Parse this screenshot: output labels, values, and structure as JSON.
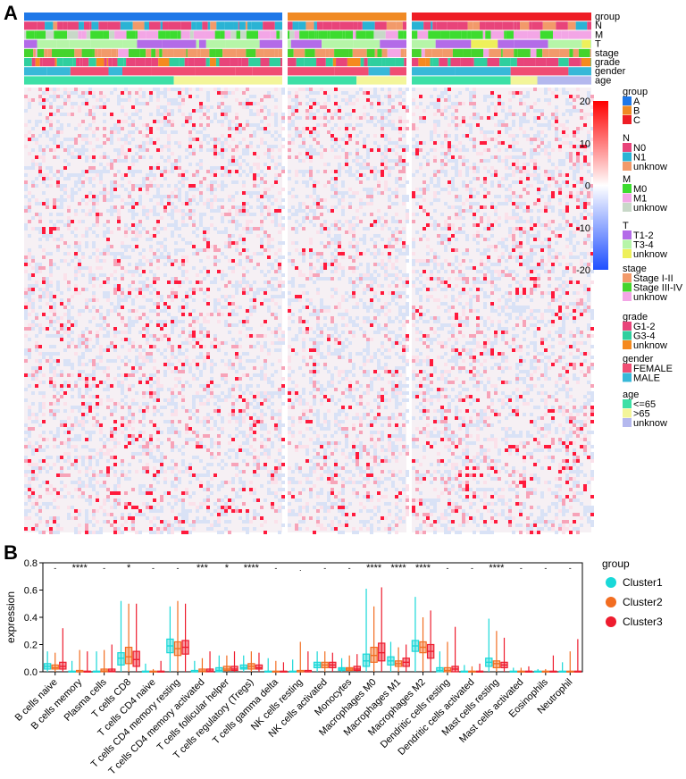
{
  "panel_a": {
    "label": "A",
    "annotation_rows": [
      "group",
      "N",
      "M",
      "T",
      "stage",
      "grade",
      "gender",
      "age"
    ],
    "legend_groups": [
      {
        "title": "group",
        "items": [
          {
            "label": "A",
            "color": "#1f78e8"
          },
          {
            "label": "B",
            "color": "#f08a24"
          },
          {
            "label": "C",
            "color": "#ee1d25"
          }
        ]
      },
      {
        "title": "N",
        "items": [
          {
            "label": "N0",
            "color": "#e8447a"
          },
          {
            "label": "N1",
            "color": "#2ab3d4"
          },
          {
            "label": "unknow",
            "color": "#f29a6a"
          }
        ]
      },
      {
        "title": "M",
        "items": [
          {
            "label": "M0",
            "color": "#3ddc2f"
          },
          {
            "label": "M1",
            "color": "#f3a6e6"
          },
          {
            "label": "unknow",
            "color": "#c8d8c8"
          }
        ]
      },
      {
        "title": "T",
        "items": [
          {
            "label": "T1-2",
            "color": "#b36be8"
          },
          {
            "label": "T3-4",
            "color": "#b6f5a8"
          },
          {
            "label": "unknow",
            "color": "#eef05a"
          }
        ]
      },
      {
        "title": "stage",
        "items": [
          {
            "label": "Stage I-II",
            "color": "#f29a6a"
          },
          {
            "label": "Stage III-IV",
            "color": "#45d42c"
          },
          {
            "label": "unknow",
            "color": "#f3a6e6"
          }
        ]
      },
      {
        "title": "grade",
        "items": [
          {
            "label": "G1-2",
            "color": "#e8447a"
          },
          {
            "label": "G3-4",
            "color": "#2fcf9e"
          },
          {
            "label": "unknow",
            "color": "#f58a1f"
          }
        ]
      },
      {
        "title": "gender",
        "items": [
          {
            "label": "FEMALE",
            "color": "#f04d73"
          },
          {
            "label": "MALE",
            "color": "#38b8d8"
          }
        ]
      },
      {
        "title": "age",
        "items": [
          {
            "label": "<=65",
            "color": "#3de0a6"
          },
          {
            "label": ">65",
            "color": "#f3f59a"
          },
          {
            "label": "unknow",
            "color": "#b4b8ee"
          }
        ]
      }
    ],
    "colorbar_ticks": [
      "20",
      "10",
      "0",
      "-10",
      "-20"
    ],
    "colorbar_values": [
      20,
      10,
      0,
      -10,
      -20
    ],
    "heatmap_colors": {
      "low": "#1f4fff",
      "mid": "#ffffff",
      "high": "#ff0000"
    }
  },
  "chart_data": {
    "type": "box",
    "panel_label": "B",
    "ylabel": "expression",
    "ylim": [
      0,
      0.8
    ],
    "yticks": [
      0.0,
      0.2,
      0.4,
      0.6,
      0.8
    ],
    "ytick_labels": [
      "0.0",
      "0.2",
      "0.4",
      "0.6",
      "0.8"
    ],
    "legend_title": "group",
    "series": [
      {
        "name": "Cluster1",
        "color": "#19d8d8"
      },
      {
        "name": "Cluster2",
        "color": "#f26d21"
      },
      {
        "name": "Cluster3",
        "color": "#ee1c2e"
      }
    ],
    "categories": [
      "B cells naive",
      "B cells memory",
      "Plasma cells",
      "T cells CD8",
      "T cells CD4 naive",
      "T cells CD4 memory resting",
      "T cells CD4 memory activated",
      "T cells follicular helper",
      "T cells regulatory (Tregs)",
      "T cells gamma delta",
      "NK cells resting",
      "NK cells activated",
      "Monocytes",
      "Macrophages M0",
      "Macrophages M1",
      "Macrophages M2",
      "Dendritic cells resting",
      "Dendritic cells activated",
      "Mast cells resting",
      "Mast cells activated",
      "Eosinophils",
      "Neutrophil"
    ],
    "significance": [
      "-",
      "****",
      "-",
      "*",
      "-",
      "-",
      "***",
      "*",
      "****",
      "-",
      ".",
      "-",
      "-",
      "****",
      "****",
      "****",
      "-",
      "-",
      "****",
      "-",
      "-",
      "-"
    ],
    "boxes": [
      [
        [
          0.0,
          0.02,
          0.04,
          0.06,
          0.15
        ],
        [
          0.0,
          0.02,
          0.03,
          0.05,
          0.14
        ],
        [
          0.0,
          0.02,
          0.04,
          0.07,
          0.32
        ]
      ],
      [
        [
          0.0,
          0.0,
          0.0,
          0.005,
          0.08
        ],
        [
          0.0,
          0.0,
          0.0,
          0.01,
          0.16
        ],
        [
          0.0,
          0.0,
          0.0,
          0.005,
          0.15
        ]
      ],
      [
        [
          0.0,
          0.0,
          0.0,
          0.005,
          0.15
        ],
        [
          0.0,
          0.0,
          0.005,
          0.02,
          0.16
        ],
        [
          0.0,
          0.0,
          0.005,
          0.02,
          0.2
        ]
      ],
      [
        [
          0.0,
          0.05,
          0.1,
          0.14,
          0.52
        ],
        [
          0.0,
          0.06,
          0.11,
          0.18,
          0.5
        ],
        [
          0.0,
          0.04,
          0.09,
          0.15,
          0.5
        ]
      ],
      [
        [
          0.0,
          0.0,
          0.0,
          0.005,
          0.06
        ],
        [
          0.0,
          0.0,
          0.0,
          0.005,
          0.02
        ],
        [
          0.0,
          0.0,
          0.0,
          0.005,
          0.08
        ]
      ],
      [
        [
          0.0,
          0.14,
          0.19,
          0.24,
          0.48
        ],
        [
          0.0,
          0.12,
          0.17,
          0.22,
          0.52
        ],
        [
          0.0,
          0.13,
          0.18,
          0.23,
          0.5
        ]
      ],
      [
        [
          0.0,
          0.0,
          0.0,
          0.01,
          0.08
        ],
        [
          0.0,
          0.0,
          0.005,
          0.02,
          0.1
        ],
        [
          0.0,
          0.0,
          0.005,
          0.02,
          0.15
        ]
      ],
      [
        [
          0.0,
          0.0,
          0.01,
          0.03,
          0.12
        ],
        [
          0.0,
          0.01,
          0.02,
          0.04,
          0.12
        ],
        [
          0.0,
          0.01,
          0.02,
          0.04,
          0.15
        ]
      ],
      [
        [
          0.0,
          0.02,
          0.03,
          0.05,
          0.12
        ],
        [
          0.0,
          0.02,
          0.04,
          0.06,
          0.15
        ],
        [
          0.0,
          0.02,
          0.03,
          0.05,
          0.14
        ]
      ],
      [
        [
          0.0,
          0.0,
          0.0,
          0.005,
          0.1
        ],
        [
          0.0,
          0.0,
          0.0,
          0.005,
          0.08
        ],
        [
          0.0,
          0.0,
          0.0,
          0.005,
          0.07
        ]
      ],
      [
        [
          0.0,
          0.0,
          0.0,
          0.005,
          0.09
        ],
        [
          0.0,
          0.0,
          0.0,
          0.01,
          0.22
        ],
        [
          0.0,
          0.0,
          0.0,
          0.01,
          0.15
        ]
      ],
      [
        [
          0.0,
          0.03,
          0.05,
          0.07,
          0.15
        ],
        [
          0.0,
          0.03,
          0.05,
          0.07,
          0.15
        ],
        [
          0.0,
          0.03,
          0.05,
          0.07,
          0.14
        ]
      ],
      [
        [
          0.0,
          0.01,
          0.02,
          0.03,
          0.1
        ],
        [
          0.0,
          0.01,
          0.02,
          0.03,
          0.12
        ],
        [
          0.0,
          0.01,
          0.02,
          0.04,
          0.13
        ]
      ],
      [
        [
          0.0,
          0.04,
          0.08,
          0.13,
          0.61
        ],
        [
          0.0,
          0.07,
          0.12,
          0.18,
          0.48
        ],
        [
          0.0,
          0.08,
          0.14,
          0.21,
          0.62
        ]
      ],
      [
        [
          0.0,
          0.05,
          0.08,
          0.11,
          0.22
        ],
        [
          0.0,
          0.04,
          0.06,
          0.08,
          0.18
        ],
        [
          0.0,
          0.04,
          0.07,
          0.1,
          0.2
        ]
      ],
      [
        [
          0.0,
          0.15,
          0.19,
          0.23,
          0.55
        ],
        [
          0.0,
          0.14,
          0.18,
          0.22,
          0.4
        ],
        [
          0.0,
          0.1,
          0.15,
          0.2,
          0.45
        ]
      ],
      [
        [
          0.0,
          0.0,
          0.01,
          0.03,
          0.15
        ],
        [
          0.0,
          0.0,
          0.01,
          0.03,
          0.22
        ],
        [
          0.0,
          0.0,
          0.02,
          0.04,
          0.33
        ]
      ],
      [
        [
          0.0,
          0.0,
          0.0,
          0.005,
          0.05
        ],
        [
          0.0,
          0.0,
          0.0,
          0.005,
          0.04
        ],
        [
          0.0,
          0.0,
          0.0,
          0.005,
          0.06
        ]
      ],
      [
        [
          0.0,
          0.04,
          0.07,
          0.1,
          0.39
        ],
        [
          0.0,
          0.03,
          0.06,
          0.08,
          0.3
        ],
        [
          0.0,
          0.03,
          0.05,
          0.07,
          0.25
        ]
      ],
      [
        [
          0.0,
          0.0,
          0.0,
          0.005,
          0.03
        ],
        [
          0.0,
          0.0,
          0.0,
          0.005,
          0.03
        ],
        [
          0.0,
          0.0,
          0.0,
          0.005,
          0.04
        ]
      ],
      [
        [
          0.0,
          0.0,
          0.0,
          0.005,
          0.02
        ],
        [
          0.0,
          0.0,
          0.0,
          0.005,
          0.02
        ],
        [
          0.0,
          0.0,
          0.0,
          0.005,
          0.12
        ]
      ],
      [
        [
          0.0,
          0.0,
          0.0,
          0.005,
          0.07
        ],
        [
          0.0,
          0.0,
          0.0,
          0.005,
          0.15
        ],
        [
          0.0,
          0.0,
          0.0,
          0.005,
          0.24
        ]
      ]
    ]
  }
}
